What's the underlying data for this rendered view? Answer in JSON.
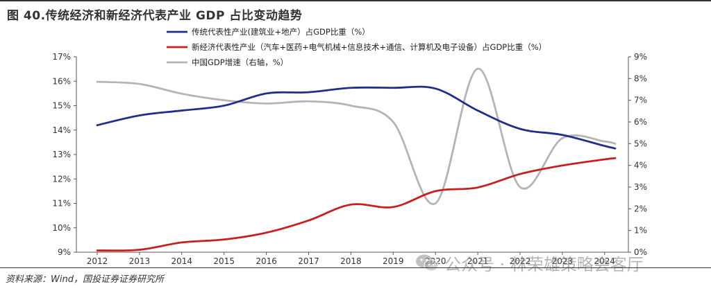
{
  "header": {
    "title": "图 40.传统经济和新经济代表产业 GDP 占比变动趋势"
  },
  "footer": {
    "source": "资料来源：Wind，国投证券证券研究所"
  },
  "watermark": {
    "text": "公众号 · 林荣雄策略会客厅",
    "icon": "wechat-icon"
  },
  "colors": {
    "traditional": "#1f2f8c",
    "new_economy": "#c8201e",
    "gdp_growth": "#b4b4b4",
    "axis": "#555555"
  },
  "chart_data": {
    "type": "line",
    "title": "",
    "xlabel": "",
    "ylabel": "",
    "x_ticks": [
      "2012",
      "2013",
      "2014",
      "2015",
      "2016",
      "2017",
      "2018",
      "2019",
      "2020",
      "2021",
      "2022",
      "2023",
      "2024"
    ],
    "x_range": [
      2012,
      2024.25
    ],
    "ylim": [
      9,
      17
    ],
    "y_ticks": [
      "9%",
      "10%",
      "11%",
      "12%",
      "13%",
      "14%",
      "15%",
      "16%",
      "17%"
    ],
    "y2lim": [
      0,
      9
    ],
    "y2_ticks": [
      "0%",
      "1%",
      "2%",
      "3%",
      "4%",
      "5%",
      "6%",
      "7%",
      "8%",
      "9%"
    ],
    "grid": false,
    "legend_position": "top-left",
    "series": [
      {
        "name": "传统代表性产业(建筑业+地产）占GDP比重（%）",
        "axis": "left",
        "color_key": "traditional",
        "x": [
          2012,
          2013,
          2014,
          2015,
          2016,
          2017,
          2018,
          2019,
          2020,
          2021,
          2022,
          2023,
          2024,
          2024.25
        ],
        "values": [
          14.2,
          14.6,
          14.8,
          15.0,
          15.5,
          15.55,
          15.73,
          15.73,
          15.7,
          14.8,
          14.05,
          13.8,
          13.35,
          13.25
        ]
      },
      {
        "name": "新经济代表性产业（汽车+医药+电气机械+信息技术+通信、计算机及电子设备）占GDP比重（%）",
        "axis": "left",
        "color_key": "new_economy",
        "x": [
          2012,
          2013,
          2014,
          2015,
          2016,
          2017,
          2018,
          2019,
          2020,
          2021,
          2022,
          2023,
          2024,
          2024.25
        ],
        "values": [
          9.07,
          9.1,
          9.4,
          9.52,
          9.8,
          10.3,
          10.95,
          10.85,
          11.5,
          11.65,
          12.2,
          12.55,
          12.8,
          12.85
        ]
      },
      {
        "name": "中国GDP增速（右轴，%）",
        "axis": "right",
        "color_key": "gdp_growth",
        "x": [
          2012,
          2013,
          2014,
          2015,
          2016,
          2017,
          2018,
          2019,
          2020,
          2021,
          2022,
          2023,
          2024,
          2024.25
        ],
        "values": [
          7.85,
          7.75,
          7.3,
          7.0,
          6.85,
          6.95,
          6.75,
          6.0,
          2.25,
          8.45,
          3.0,
          5.25,
          5.1,
          5.0
        ]
      }
    ]
  }
}
